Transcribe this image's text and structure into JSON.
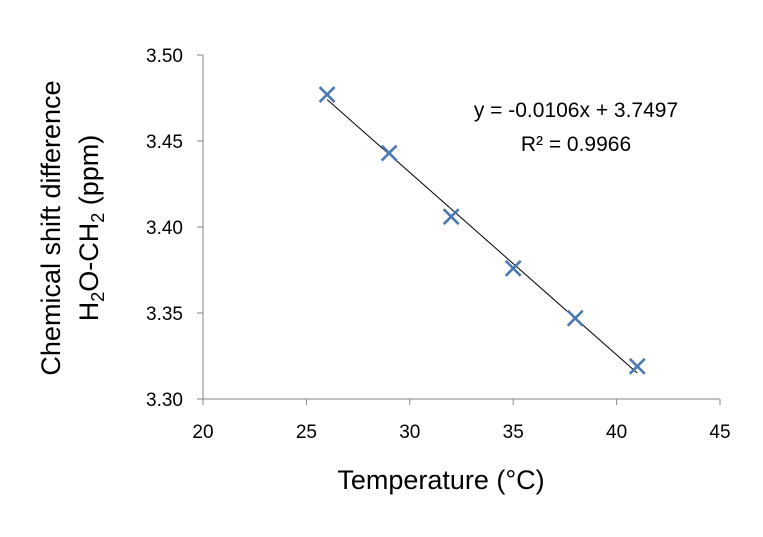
{
  "chart_data": {
    "type": "scatter",
    "xlabel": "Temperature (°C)",
    "ylabel_line1": "Chemical shift difference",
    "ylabel_line2": {
      "parts": [
        "H",
        "2",
        "O-CH",
        "2",
        " (ppm)"
      ]
    },
    "xlim": [
      20,
      45
    ],
    "ylim": [
      3.3,
      3.5
    ],
    "x_ticks": [
      20,
      25,
      30,
      35,
      40,
      45
    ],
    "x_tick_labels": [
      "20",
      "25",
      "30",
      "35",
      "40",
      "45"
    ],
    "y_ticks": [
      3.3,
      3.35,
      3.4,
      3.45,
      3.5
    ],
    "y_tick_labels": [
      "3.30",
      "3.35",
      "3.40",
      "3.45",
      "3.50"
    ],
    "grid": false,
    "series": [
      {
        "marker": "x",
        "color": "#4a7ab5",
        "points": [
          {
            "x": 26,
            "y": 3.477
          },
          {
            "x": 29,
            "y": 3.443
          },
          {
            "x": 32,
            "y": 3.406
          },
          {
            "x": 35,
            "y": 3.376
          },
          {
            "x": 38,
            "y": 3.347
          },
          {
            "x": 41,
            "y": 3.319
          }
        ]
      }
    ],
    "trendline": {
      "type": "linear",
      "slope": -0.0106,
      "intercept": 3.7497,
      "x_range": [
        26,
        41
      ],
      "color": "#000000"
    },
    "annotations": {
      "equation": "y = -0.0106x + 3.7497",
      "r_squared": "R² = 0.9966"
    }
  }
}
